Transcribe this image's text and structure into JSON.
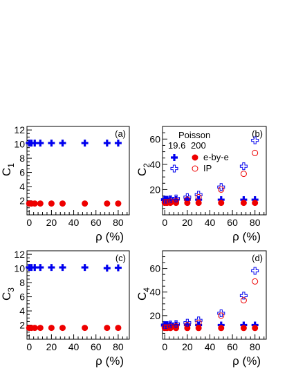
{
  "colors": {
    "blue": "#0000ee",
    "red": "#ee0000",
    "axis": "#000000"
  },
  "legend": {
    "header": "Poisson",
    "col1": "19.6",
    "col2": "200",
    "entry1": "e-by-e",
    "entry2": "IP"
  },
  "chart_data": [
    {
      "type": "scatter",
      "panel_label": "(a)",
      "xlabel": "ρ (%)",
      "ylabel": "C",
      "ylabel_sub": "1",
      "xlim": [
        -2,
        90
      ],
      "ylim": [
        0,
        12.5
      ],
      "xticks": [
        0,
        20,
        40,
        60,
        80
      ],
      "yticks": [
        2,
        4,
        6,
        8,
        10,
        12
      ],
      "series": [
        {
          "marker": "filled-cross",
          "color": "blue",
          "x": [
            0,
            2,
            5,
            10,
            20,
            30,
            50,
            70,
            80
          ],
          "y": [
            10.15,
            10.15,
            10.15,
            10.15,
            10.15,
            10.15,
            10.15,
            10.15,
            10.15
          ]
        },
        {
          "marker": "filled-circle",
          "color": "red",
          "x": [
            0,
            2,
            5,
            10,
            20,
            30,
            50,
            70,
            80
          ],
          "y": [
            1.6,
            1.6,
            1.6,
            1.6,
            1.6,
            1.6,
            1.6,
            1.6,
            1.6
          ]
        }
      ]
    },
    {
      "type": "scatter",
      "panel_label": "(b)",
      "xlabel": "ρ (%)",
      "ylabel": "C",
      "ylabel_sub": "2",
      "xlim": [
        -2,
        90
      ],
      "ylim": [
        0,
        70
      ],
      "xticks": [
        0,
        20,
        40,
        60,
        80
      ],
      "yticks": [
        20,
        40,
        60
      ],
      "series": [
        {
          "name": "e-by-e",
          "marker": "filled-cross",
          "color": "blue",
          "x": [
            0,
            2,
            5,
            10,
            20,
            30,
            50,
            70,
            80
          ],
          "y": [
            12,
            12,
            12,
            12,
            12,
            12,
            12,
            12,
            12
          ]
        },
        {
          "name": "e-by-e",
          "marker": "filled-circle",
          "color": "red",
          "x": [
            0,
            2,
            5,
            10,
            20,
            30,
            50,
            70,
            80
          ],
          "y": [
            9.5,
            9.5,
            9.5,
            9.5,
            9.5,
            9.5,
            9.5,
            9.5,
            9.5
          ]
        },
        {
          "name": "IP",
          "marker": "open-cross",
          "color": "blue",
          "x": [
            0,
            2,
            5,
            10,
            20,
            30,
            50,
            70,
            80
          ],
          "y": [
            12,
            12,
            12.5,
            13,
            14,
            16,
            22,
            38.5,
            59
          ]
        },
        {
          "name": "IP",
          "marker": "open-circle",
          "color": "red",
          "x": [
            0,
            2,
            5,
            10,
            20,
            30,
            50,
            70,
            80
          ],
          "y": [
            10,
            10,
            10.5,
            11,
            12,
            14,
            20,
            32.5,
            49
          ]
        }
      ]
    },
    {
      "type": "scatter",
      "panel_label": "(c)",
      "xlabel": "ρ (%)",
      "ylabel": "C",
      "ylabel_sub": "3",
      "xlim": [
        -2,
        90
      ],
      "ylim": [
        0,
        12.5
      ],
      "xticks": [
        0,
        20,
        40,
        60,
        80
      ],
      "yticks": [
        2,
        4,
        6,
        8,
        10,
        12
      ],
      "series": [
        {
          "marker": "filled-cross",
          "color": "blue",
          "x": [
            0,
            2,
            5,
            10,
            20,
            30,
            50,
            70,
            80
          ],
          "y": [
            10.15,
            10.15,
            10.15,
            10.15,
            10.15,
            10.15,
            10.15,
            10.05,
            10.1
          ]
        },
        {
          "marker": "filled-circle",
          "color": "red",
          "x": [
            0,
            2,
            5,
            10,
            20,
            30,
            50,
            70,
            80
          ],
          "y": [
            1.6,
            1.6,
            1.6,
            1.6,
            1.6,
            1.6,
            1.6,
            1.6,
            1.6
          ]
        }
      ]
    },
    {
      "type": "scatter",
      "panel_label": "(d)",
      "xlabel": "ρ (%)",
      "ylabel": "C",
      "ylabel_sub": "4",
      "xlim": [
        -2,
        90
      ],
      "ylim": [
        0,
        75
      ],
      "xticks": [
        0,
        20,
        40,
        60,
        80
      ],
      "yticks": [
        20,
        40,
        60
      ],
      "series": [
        {
          "marker": "filled-cross",
          "color": "blue",
          "x": [
            0,
            2,
            5,
            10,
            20,
            30,
            50,
            70,
            80
          ],
          "y": [
            12,
            12,
            12,
            12,
            12,
            12,
            12,
            12,
            12
          ]
        },
        {
          "marker": "filled-circle",
          "color": "red",
          "x": [
            0,
            2,
            5,
            10,
            20,
            30,
            50,
            70,
            80
          ],
          "y": [
            9.5,
            9.5,
            9.5,
            9.5,
            9.5,
            9.5,
            9.5,
            9.5,
            9.5
          ]
        },
        {
          "marker": "open-cross",
          "color": "blue",
          "x": [
            0,
            2,
            5,
            10,
            20,
            30,
            50,
            70,
            80
          ],
          "y": [
            12,
            12,
            12.5,
            13,
            14,
            16,
            22,
            37,
            58
          ]
        },
        {
          "marker": "open-circle",
          "color": "red",
          "x": [
            0,
            2,
            5,
            10,
            20,
            30,
            50,
            70,
            80
          ],
          "y": [
            10,
            10,
            10.5,
            11,
            12,
            14,
            20,
            33,
            49
          ]
        }
      ]
    }
  ]
}
